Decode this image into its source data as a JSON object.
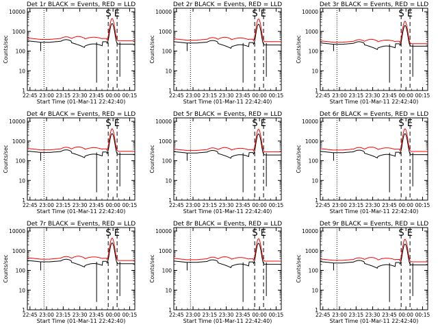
{
  "chart_data": {
    "type": "line",
    "layout": "3x3 grid",
    "x_axis": {
      "label": "Start Time (01-Mar-11 22:42:40)",
      "ticks": [
        "22:45",
        "23:00",
        "23:15",
        "23:30",
        "23:45",
        "00:00",
        "00:15"
      ],
      "range_minutes": [
        0,
        97
      ]
    },
    "y_axis": {
      "label": "Counts/sec",
      "scale": "log",
      "range": [
        1,
        15000
      ],
      "ticks": [
        "1",
        "10",
        "100",
        "1000",
        "10000"
      ]
    },
    "series_colors": {
      "events": "#000000",
      "lld": "#ff0000"
    },
    "markers": {
      "dotted_minute": 15,
      "dashed_minutes": [
        73,
        81
      ]
    },
    "panels": [
      {
        "title": "Det 1r BLACK = Events, RED = LLD",
        "annotation": "S E",
        "base_events": 330,
        "base_lld": 460,
        "peak_events": 2500,
        "peak_lld": 4500
      },
      {
        "title": "Det 2r BLACK = Events, RED = LLD",
        "annotation": "S E",
        "base_events": 300,
        "base_lld": 420,
        "peak_events": 2300,
        "peak_lld": 4300
      },
      {
        "title": "Det 3r BLACK = Events, RED = LLD",
        "annotation": "S E",
        "base_events": 260,
        "base_lld": 330,
        "peak_events": 2000,
        "peak_lld": 3300
      },
      {
        "title": "Det 4r BLACK = Events, RED = LLD",
        "annotation": "S E",
        "base_events": 310,
        "base_lld": 420,
        "peak_events": 2400,
        "peak_lld": 4200
      },
      {
        "title": "Det 5r BLACK = Events, RED = LLD",
        "annotation": "S E",
        "base_events": 290,
        "base_lld": 390,
        "peak_events": 2300,
        "peak_lld": 4000
      },
      {
        "title": "Det 6r BLACK = Events, RED = LLD",
        "annotation": "S E",
        "base_events": 300,
        "base_lld": 410,
        "peak_events": 2400,
        "peak_lld": 4200
      },
      {
        "title": "Det 7r BLACK = Events, RED = LLD",
        "annotation": "S E",
        "base_events": 320,
        "base_lld": 440,
        "peak_events": 2500,
        "peak_lld": 4400
      },
      {
        "title": "Det 8r BLACK = Events, RED = LLD",
        "annotation": "S E",
        "base_events": 300,
        "base_lld": 410,
        "peak_events": 2400,
        "peak_lld": 4100
      },
      {
        "title": "Det 9r BLACK = Events, RED = LLD",
        "annotation": "S E",
        "base_events": 280,
        "base_lld": 380,
        "peak_events": 2200,
        "peak_lld": 3800
      }
    ]
  }
}
